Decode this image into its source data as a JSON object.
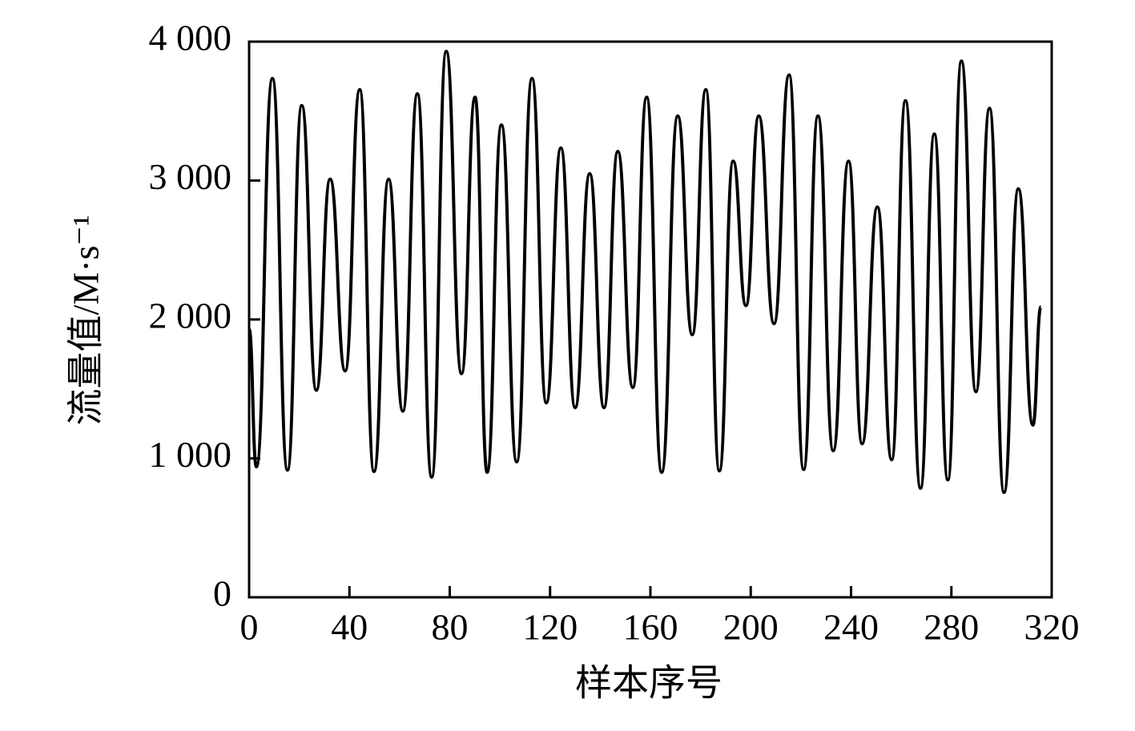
{
  "chart_data": {
    "type": "line",
    "xlabel": "样本序号",
    "ylabel": "流量值/M·s⁻¹",
    "xlim": [
      0,
      320
    ],
    "xticks": [
      0,
      40,
      80,
      120,
      160,
      200,
      240,
      280,
      320
    ],
    "ylim": [
      0,
      4000
    ],
    "yticks": [
      0,
      {
        "value": 1000,
        "label": "1 000"
      },
      {
        "value": 2000,
        "label": "2 000"
      },
      {
        "value": 3000,
        "label": "3 000"
      },
      {
        "value": 4000,
        "label": "4 000"
      }
    ],
    "series": [
      {
        "color": "#000000",
        "x": [
          0,
          2.9,
          9.3,
          15.3,
          21,
          26.8,
          32.3,
          38.3,
          44.1,
          49.8,
          55.6,
          61.3,
          67.1,
          72.8,
          78.6,
          84.7,
          90.1,
          94.9,
          100.6,
          106.7,
          112.8,
          118.5,
          124.3,
          130,
          135.8,
          141.5,
          147,
          153,
          158.5,
          164.5,
          170.9,
          176.7,
          182.1,
          187.5,
          193,
          198.1,
          203.2,
          209.3,
          215.3,
          221.1,
          226.8,
          232.9,
          239,
          244.4,
          250.5,
          256.2,
          261.7,
          267.7,
          273.2,
          278.6,
          284,
          289.8,
          295.2,
          301,
          306.7,
          312.5,
          315.7
        ],
        "values": [
          1930,
          940,
          3735,
          916,
          3540,
          1490,
          3010,
          1630,
          3655,
          905,
          3010,
          1340,
          3625,
          865,
          3930,
          1610,
          3600,
          900,
          3400,
          975,
          3735,
          1400,
          3235,
          1365,
          3050,
          1365,
          3210,
          1510,
          3600,
          900,
          3465,
          1890,
          3655,
          910,
          3140,
          2100,
          3465,
          1970,
          3760,
          920,
          3465,
          1055,
          3140,
          1105,
          2810,
          990,
          3575,
          785,
          3335,
          845,
          3860,
          1480,
          3520,
          755,
          2940,
          1240,
          2090
        ]
      }
    ]
  }
}
